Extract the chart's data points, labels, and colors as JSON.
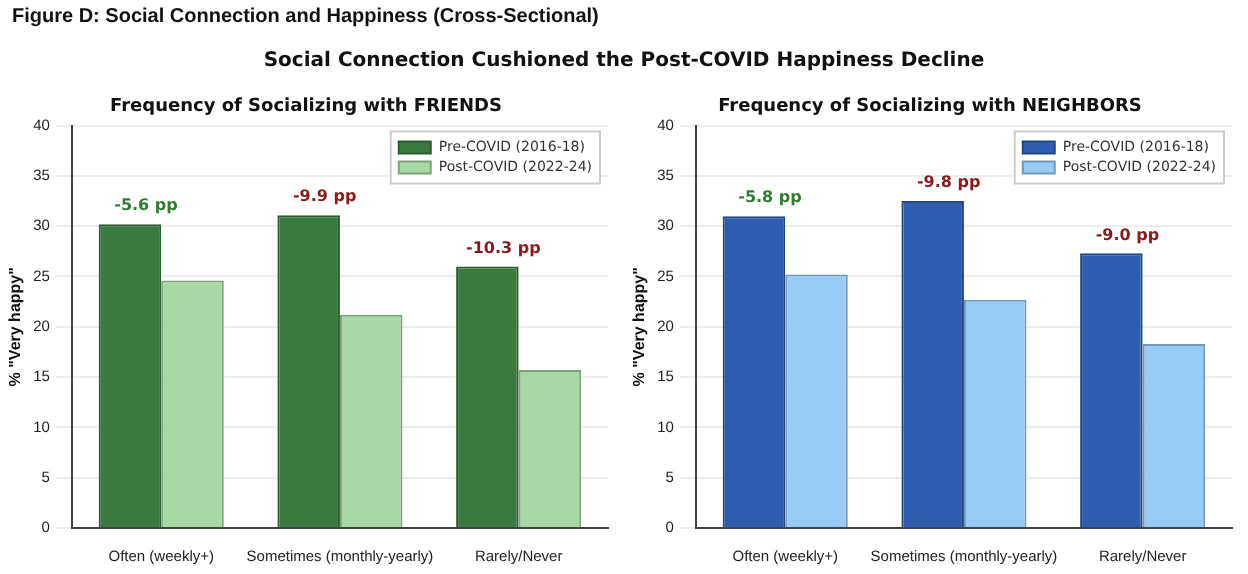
{
  "chart_data": [
    {
      "type": "bar",
      "title": "Frequency of Socializing with FRIENDS",
      "ylabel": "% \"Very happy\"",
      "categories": [
        "Often (weekly+)",
        "Sometimes (monthly-yearly)",
        "Rarely/Never"
      ],
      "series": [
        {
          "name": "Pre-COVID (2016-18)",
          "color": "#3b7a3f",
          "values": [
            30.2,
            31.1,
            26.0
          ]
        },
        {
          "name": "Post-COVID (2022-24)",
          "color": "#a8d8a4",
          "values": [
            24.6,
            21.2,
            15.7
          ]
        }
      ],
      "ylim": [
        0,
        40
      ],
      "yticks": [
        0,
        5,
        10,
        15,
        20,
        25,
        30,
        35,
        40
      ],
      "grid": "y",
      "legend": "top right",
      "annotations": [
        "Figure D: Social Connection and Happiness (Cross-Sectional)",
        "Social Connection Cushioned the Post-COVID Happiness Decline",
        {
          "text": "-5.6 pp",
          "x": "Often (weekly+)",
          "y": 30.2
        },
        {
          "text": "-9.9 pp",
          "x": "Sometimes (monthly-yearly)",
          "y": 31.1
        },
        {
          "text": "-10.3 pp",
          "x": "Rarely/Never",
          "y": 26.0
        }
      ]
    },
    {
      "type": "bar",
      "title": "Frequency of Socializing with NEIGHBORS",
      "ylabel": "% \"Very happy\"",
      "categories": [
        "Often (weekly+)",
        "Sometimes (monthly-yearly)",
        "Rarely/Never"
      ],
      "series": [
        {
          "name": "Pre-COVID (2016-18)",
          "color": "#2f5eb0",
          "values": [
            31.0,
            32.5,
            27.3
          ]
        },
        {
          "name": "Post-COVID (2022-24)",
          "color": "#99cbf7",
          "values": [
            25.2,
            22.7,
            18.3
          ]
        }
      ],
      "ylim": [
        0,
        40
      ],
      "yticks": [
        0,
        5,
        10,
        15,
        20,
        25,
        30,
        35,
        40
      ],
      "grid": "y",
      "legend": "top right",
      "annotations": [
        {
          "text": "-5.8 pp",
          "x": "Often (weekly+)",
          "y": 31.0
        },
        {
          "text": "-9.8 pp",
          "x": "Sometimes (monthly-yearly)",
          "y": 32.5
        },
        {
          "text": "-9.0 pp",
          "x": "Rarely/Never",
          "y": 27.3
        }
      ]
    }
  ]
}
